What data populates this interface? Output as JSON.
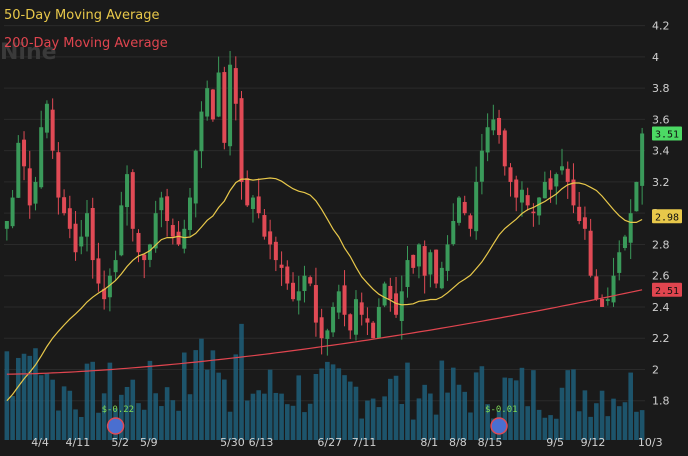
{
  "ticker": "Nine",
  "legend": {
    "ma50_label": "50-Day Moving Average",
    "ma200_label": "200-Day Moving Average",
    "ma50_color": "#e8c84a",
    "ma200_color": "#e0454f"
  },
  "colors": {
    "background": "#1a1a1a",
    "up": "#3a9a5a",
    "down": "#e04a55",
    "volume": "#1f5f7a",
    "grid": "#2a2a2a",
    "price_badge": "#4cd964"
  },
  "badges": {
    "last_price": "3.51",
    "ma50": "2.98",
    "ma200": "2.51"
  },
  "dividends": [
    {
      "date_index": 19,
      "label": "$-0.22"
    },
    {
      "date_index": 86,
      "label": "$-0.01"
    }
  ],
  "chart_data": {
    "type": "candlestick",
    "title": "",
    "ylim": [
      1.6,
      4.3
    ],
    "y_ticks": [
      "4.2",
      "4",
      "3.8",
      "3.6",
      "3.4",
      "3.2",
      "3",
      "2.8",
      "2.6",
      "2.4",
      "2.2",
      "2",
      "1.8"
    ],
    "x_ticks": [
      {
        "label": "4/4",
        "index": 6
      },
      {
        "label": "4/11",
        "index": 12
      },
      {
        "label": "5/2",
        "index": 20
      },
      {
        "label": "5/9",
        "index": 25
      },
      {
        "label": "5/30",
        "index": 39
      },
      {
        "label": "6/13",
        "index": 44
      },
      {
        "label": "6/27",
        "index": 56
      },
      {
        "label": "7/11",
        "index": 62
      },
      {
        "label": "8/1",
        "index": 74
      },
      {
        "label": "8/8",
        "index": 79
      },
      {
        "label": "8/15",
        "index": 84
      },
      {
        "label": "9/5",
        "index": 96
      },
      {
        "label": "9/12",
        "index": 102
      },
      {
        "label": "10/3",
        "index": 112
      }
    ],
    "close": [
      2.95,
      3.1,
      3.45,
      3.3,
      3.05,
      3.2,
      3.55,
      3.7,
      3.4,
      3.1,
      3.0,
      2.9,
      2.75,
      2.85,
      3.0,
      2.7,
      2.55,
      2.45,
      2.6,
      2.7,
      3.05,
      3.25,
      2.9,
      2.75,
      2.7,
      2.8,
      3.0,
      3.1,
      2.95,
      2.85,
      2.8,
      2.9,
      3.1,
      3.4,
      3.65,
      3.8,
      3.6,
      3.9,
      3.45,
      3.95,
      3.7,
      3.2,
      3.05,
      3.1,
      3.0,
      2.85,
      2.8,
      2.7,
      2.65,
      2.55,
      2.45,
      2.5,
      2.6,
      2.55,
      2.3,
      2.2,
      2.25,
      2.4,
      2.5,
      2.35,
      2.25,
      2.45,
      2.35,
      2.3,
      2.2,
      2.4,
      2.55,
      2.45,
      2.35,
      2.5,
      2.7,
      2.65,
      2.8,
      2.6,
      2.75,
      2.55,
      2.65,
      2.8,
      2.95,
      3.1,
      3.0,
      2.9,
      3.2,
      3.4,
      3.55,
      3.6,
      3.5,
      3.3,
      3.2,
      3.1,
      3.15,
      3.05,
      3.0,
      3.1,
      3.2,
      3.15,
      3.25,
      3.3,
      3.2,
      3.05,
      2.95,
      2.9,
      2.6,
      2.45,
      2.4,
      2.45,
      2.6,
      2.75,
      2.85,
      3.0,
      3.2,
      3.51
    ],
    "ma50_endpoints": {
      "start": 1.8,
      "peak": 3.1,
      "end": 2.98
    },
    "ma200_endpoints": {
      "start": 1.97,
      "end": 2.51
    }
  }
}
